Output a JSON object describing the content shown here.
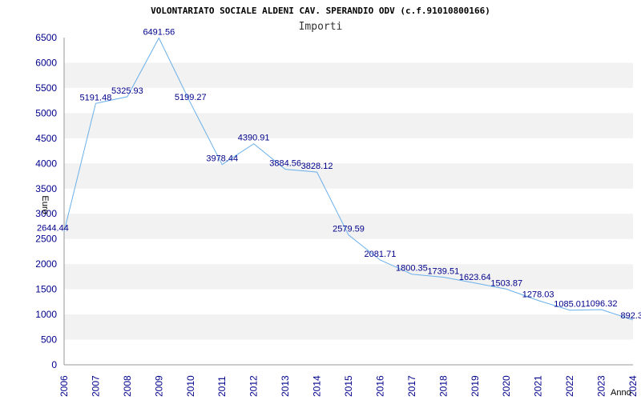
{
  "chart_data": {
    "type": "line",
    "title": "VOLONTARIATO SOCIALE ALDENI CAV. SPERANDIO ODV (c.f.91010800166)",
    "subtitle": "Importi",
    "xlabel": "Anno",
    "ylabel": "Euro",
    "ylim": [
      0,
      6500
    ],
    "ytick_step": 500,
    "grid": "horizontal bands",
    "categories": [
      "2006",
      "2007",
      "2008",
      "2009",
      "2010",
      "2011",
      "2012",
      "2013",
      "2014",
      "2015",
      "2016",
      "2017",
      "2018",
      "2019",
      "2020",
      "2021",
      "2022",
      "2023",
      "2024"
    ],
    "series": [
      {
        "values": [
          2644.44,
          5191.48,
          5325.93,
          6491.56,
          5199.27,
          3978.44,
          4390.91,
          3884.56,
          3828.12,
          2579.59,
          2081.71,
          1800.35,
          1739.51,
          1623.64,
          1503.87,
          1278.03,
          1085.01,
          1096.32,
          892.3
        ],
        "labels": [
          "2644.44",
          "5191.48",
          "5325.93",
          "6491.56",
          "5199.27",
          "3978.44",
          "4390.91",
          "3884.56",
          "3828.12",
          "2579.59",
          "2081.71",
          "1800.35",
          "1739.51",
          "1623.64",
          "1503.87",
          "1278.03",
          "1085.01",
          "1096.32",
          "892.3"
        ]
      }
    ],
    "colors": {
      "line": "#6ab0ea",
      "band": "#f2f2f2",
      "tick_text": "#00008b"
    }
  }
}
